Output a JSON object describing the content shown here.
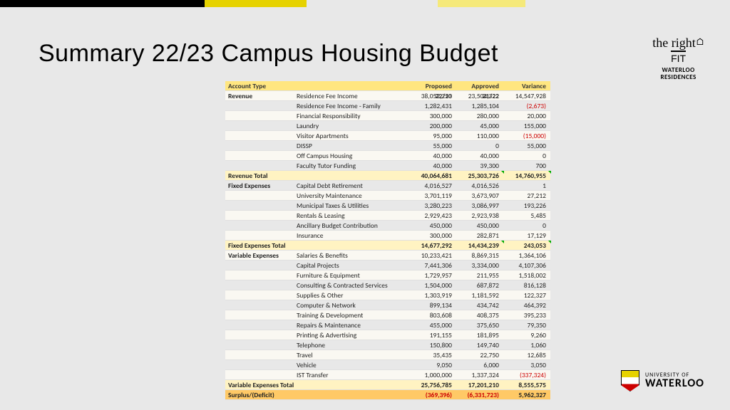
{
  "title": "Summary 22/23 Campus Housing Budget",
  "logo_right": {
    "line1": "the",
    "line2": "right",
    "line3": "FIT",
    "sub1": "WATERLOO",
    "sub2": "RESIDENCES"
  },
  "uw_logo": {
    "line1": "UNIVERSITY OF",
    "line2": "WATERLOO"
  },
  "header": {
    "col1": "Account Type",
    "col3": "Proposed 22/23",
    "col4": "Approved 21/22",
    "col5": "Variance"
  },
  "sections": [
    {
      "label": "Revenue",
      "items": [
        {
          "name": "Residence Fee Income",
          "p": "38,052,250",
          "a": "23,504,322",
          "v": "14,547,928"
        },
        {
          "name": "Residence Fee Income - Family",
          "p": "1,282,431",
          "a": "1,285,104",
          "v": "(2,673)",
          "neg": true
        },
        {
          "name": "Financial Responsibility",
          "p": "300,000",
          "a": "280,000",
          "v": "20,000"
        },
        {
          "name": "Laundry",
          "p": "200,000",
          "a": "45,000",
          "v": "155,000"
        },
        {
          "name": "Visitor Apartments",
          "p": "95,000",
          "a": "110,000",
          "v": "(15,000)",
          "neg": true
        },
        {
          "name": "DISSP",
          "p": "55,000",
          "a": "0",
          "v": "55,000"
        },
        {
          "name": "Off Campus Housing",
          "p": "40,000",
          "a": "40,000",
          "v": "0"
        },
        {
          "name": "Faculty Tutor Funding",
          "p": "40,000",
          "a": "39,300",
          "v": "700"
        }
      ],
      "total": {
        "label": "Revenue Total",
        "p": "40,064,681",
        "a": "25,303,726",
        "v": "14,760,955",
        "tri": true
      }
    },
    {
      "label": "Fixed Expenses",
      "items": [
        {
          "name": "Capital Debt Retirement",
          "p": "4,016,527",
          "a": "4,016,526",
          "v": "1"
        },
        {
          "name": "University Maintenance",
          "p": "3,701,119",
          "a": "3,673,907",
          "v": "27,212"
        },
        {
          "name": "Municipal Taxes & Utilities",
          "p": "3,280,223",
          "a": "3,086,997",
          "v": "193,226"
        },
        {
          "name": "Rentals & Leasing",
          "p": "2,929,423",
          "a": "2,923,938",
          "v": "5,485"
        },
        {
          "name": "Ancillary Budget Contribution",
          "p": "450,000",
          "a": "450,000",
          "v": "0"
        },
        {
          "name": "Insurance",
          "p": "300,000",
          "a": "282,871",
          "v": "17,129"
        }
      ],
      "total": {
        "label": "Fixed Expenses Total",
        "p": "14,677,292",
        "a": "14,434,239",
        "v": "243,053",
        "tri": true
      }
    },
    {
      "label": "Variable Expenses",
      "items": [
        {
          "name": "Salaries & Benefits",
          "p": "10,233,421",
          "a": "8,869,315",
          "v": "1,364,106"
        },
        {
          "name": "Capital Projects",
          "p": "7,441,306",
          "a": "3,334,000",
          "v": "4,107,306"
        },
        {
          "name": "Furniture & Equipment",
          "p": "1,729,957",
          "a": "211,955",
          "v": "1,518,002"
        },
        {
          "name": "Consulting & Contracted Services",
          "p": "1,504,000",
          "a": "687,872",
          "v": "816,128"
        },
        {
          "name": "Supplies & Other",
          "p": "1,303,919",
          "a": "1,181,592",
          "v": "122,327"
        },
        {
          "name": "Computer & Network",
          "p": "899,134",
          "a": "434,742",
          "v": "464,392"
        },
        {
          "name": "Training & Development",
          "p": "803,608",
          "a": "408,375",
          "v": "395,233"
        },
        {
          "name": "Repairs & Maintenance",
          "p": "455,000",
          "a": "375,650",
          "v": "79,350"
        },
        {
          "name": "Printing & Advertising",
          "p": "191,155",
          "a": "181,895",
          "v": "9,260"
        },
        {
          "name": "Telephone",
          "p": "150,800",
          "a": "149,740",
          "v": "1,060"
        },
        {
          "name": "Travel",
          "p": "35,435",
          "a": "22,750",
          "v": "12,685"
        },
        {
          "name": "Vehicle",
          "p": "9,050",
          "a": "6,000",
          "v": "3,050"
        },
        {
          "name": "IST Transfer",
          "p": "1,000,000",
          "a": "1,337,324",
          "v": "(337,324)",
          "neg": true
        }
      ],
      "total": {
        "label": "Variable Expenses Total",
        "p": "25,756,785",
        "a": "17,201,210",
        "v": "8,555,575"
      }
    }
  ],
  "surplus": {
    "label": "Surplus/(Deficit)",
    "p": "(369,396)",
    "a": "(6,331,723)",
    "v": "5,962,327"
  }
}
